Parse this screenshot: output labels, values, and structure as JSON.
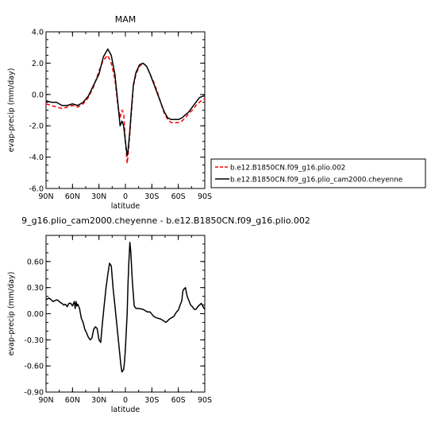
{
  "chart_data": [
    {
      "type": "line",
      "title": "MAM",
      "xlabel": "latitude",
      "ylabel": "evap-precip (mm/day)",
      "xlim": [
        90,
        -90
      ],
      "ylim": [
        -6.0,
        4.0
      ],
      "xticks": [
        90,
        60,
        30,
        0,
        -30,
        -60,
        -90
      ],
      "xtick_labels": [
        "90N",
        "60N",
        "30N",
        "0",
        "30S",
        "60S",
        "90S"
      ],
      "yticks": [
        -6.0,
        -4.0,
        -2.0,
        0.0,
        2.0,
        4.0
      ],
      "ytick_labels": [
        "-6.0",
        "-4.0",
        "-2.0",
        "0.0",
        "2.0",
        "4.0"
      ],
      "legend": "outside-right",
      "series": [
        {
          "name": "b.e12.B1850CN.f09_g16.plio.002",
          "color": "#ff0000",
          "style": "dashed",
          "x": [
            90,
            84,
            78,
            72,
            66,
            60,
            54,
            48,
            42,
            36,
            30,
            25,
            20,
            16,
            12,
            9,
            6,
            4,
            2,
            0,
            -2,
            -3,
            -5,
            -7,
            -9,
            -12,
            -16,
            -20,
            -24,
            -28,
            -32,
            -36,
            -40,
            -44,
            -48,
            -52,
            -56,
            -60,
            -64,
            -68,
            -72,
            -76,
            -80,
            -84,
            -88,
            -90
          ],
          "y": [
            -0.6,
            -0.7,
            -0.8,
            -0.9,
            -0.8,
            -0.7,
            -0.8,
            -0.6,
            -0.2,
            0.5,
            1.5,
            2.2,
            2.5,
            2.0,
            1.0,
            -0.5,
            -1.5,
            -1.0,
            -1.2,
            -3.0,
            -4.4,
            -3.9,
            -2.5,
            -1.0,
            0.5,
            1.3,
            1.8,
            2.0,
            1.8,
            1.3,
            0.8,
            0.2,
            -0.5,
            -1.2,
            -1.6,
            -1.8,
            -1.8,
            -1.8,
            -1.7,
            -1.5,
            -1.2,
            -1.0,
            -0.7,
            -0.5,
            -0.3,
            -0.3
          ]
        },
        {
          "name": "b.e12.B1850CN.f09_g16.plio_cam2000.cheyenne",
          "color": "#000000",
          "style": "solid",
          "x": [
            90,
            84,
            78,
            72,
            66,
            60,
            54,
            48,
            42,
            36,
            30,
            25,
            20,
            16,
            12,
            9,
            6,
            4,
            2,
            0,
            -2,
            -3,
            -5,
            -7,
            -9,
            -12,
            -16,
            -20,
            -24,
            -28,
            -32,
            -36,
            -40,
            -44,
            -48,
            -52,
            -56,
            -60,
            -64,
            -68,
            -72,
            -76,
            -80,
            -84,
            -88,
            -90
          ],
          "y": [
            -0.4,
            -0.5,
            -0.5,
            -0.7,
            -0.7,
            -0.6,
            -0.7,
            -0.5,
            -0.1,
            0.6,
            1.3,
            2.4,
            2.9,
            2.5,
            1.3,
            -0.3,
            -2.0,
            -1.7,
            -2.0,
            -3.0,
            -3.9,
            -3.6,
            -2.3,
            -0.8,
            0.6,
            1.4,
            1.9,
            2.0,
            1.8,
            1.3,
            0.7,
            0.1,
            -0.5,
            -1.1,
            -1.5,
            -1.6,
            -1.6,
            -1.6,
            -1.5,
            -1.3,
            -1.1,
            -0.8,
            -0.5,
            -0.2,
            -0.1,
            -0.1
          ]
        }
      ]
    },
    {
      "type": "line",
      "title": "9_g16.plio_cam2000.cheyenne - b.e12.B1850CN.f09_g16.plio.002",
      "xlabel": "latitude",
      "ylabel": "evap-precip (mm/day)",
      "xlim": [
        90,
        -90
      ],
      "ylim": [
        -0.9,
        0.9
      ],
      "xticks": [
        90,
        60,
        30,
        0,
        -30,
        -60,
        -90
      ],
      "xtick_labels": [
        "90N",
        "60N",
        "30N",
        "0",
        "30S",
        "60S",
        "90S"
      ],
      "yticks": [
        -0.9,
        -0.6,
        -0.3,
        0.0,
        0.3,
        0.6
      ],
      "ytick_labels": [
        "-0.90",
        "-0.60",
        "-0.30",
        "0.00",
        "0.30",
        "0.60"
      ],
      "series": [
        {
          "color": "#000000",
          "style": "solid",
          "x": [
            90,
            87,
            84,
            82,
            80,
            78,
            76,
            74,
            72,
            70,
            68,
            66,
            64,
            62,
            60,
            58,
            57,
            56,
            55,
            54,
            52,
            50,
            48,
            46,
            44,
            42,
            40,
            38,
            36,
            34,
            32,
            30,
            28,
            26,
            24,
            22,
            20,
            18,
            16,
            14,
            12,
            10,
            8,
            6,
            5,
            4,
            2,
            1,
            0,
            -1,
            -2,
            -3,
            -4,
            -5,
            -6,
            -8,
            -10,
            -12,
            -15,
            -20,
            -25,
            -28,
            -32,
            -36,
            -40,
            -43,
            -46,
            -50,
            -55,
            -58,
            -60,
            -62,
            -64,
            -65,
            -66,
            -68,
            -70,
            -72,
            -74,
            -76,
            -78,
            -80,
            -82,
            -84,
            -86,
            -88,
            -90
          ],
          "y": [
            0.16,
            0.18,
            0.16,
            0.14,
            0.15,
            0.16,
            0.15,
            0.13,
            0.12,
            0.1,
            0.11,
            0.08,
            0.12,
            0.12,
            0.09,
            0.14,
            0.06,
            0.14,
            0.09,
            0.11,
            0.06,
            -0.05,
            -0.1,
            -0.18,
            -0.22,
            -0.27,
            -0.3,
            -0.28,
            -0.18,
            -0.15,
            -0.17,
            -0.3,
            -0.33,
            -0.1,
            0.1,
            0.3,
            0.45,
            0.58,
            0.55,
            0.3,
            0.1,
            -0.1,
            -0.3,
            -0.5,
            -0.6,
            -0.67,
            -0.64,
            -0.55,
            -0.4,
            -0.2,
            0.0,
            0.35,
            0.6,
            0.82,
            0.72,
            0.35,
            0.09,
            0.06,
            0.06,
            0.05,
            0.02,
            0.02,
            -0.03,
            -0.05,
            -0.06,
            -0.08,
            -0.1,
            -0.06,
            -0.03,
            0.02,
            0.04,
            0.1,
            0.15,
            0.25,
            0.28,
            0.3,
            0.2,
            0.15,
            0.1,
            0.08,
            0.05,
            0.05,
            0.08,
            0.1,
            0.12,
            0.08,
            0.05
          ]
        }
      ]
    }
  ]
}
